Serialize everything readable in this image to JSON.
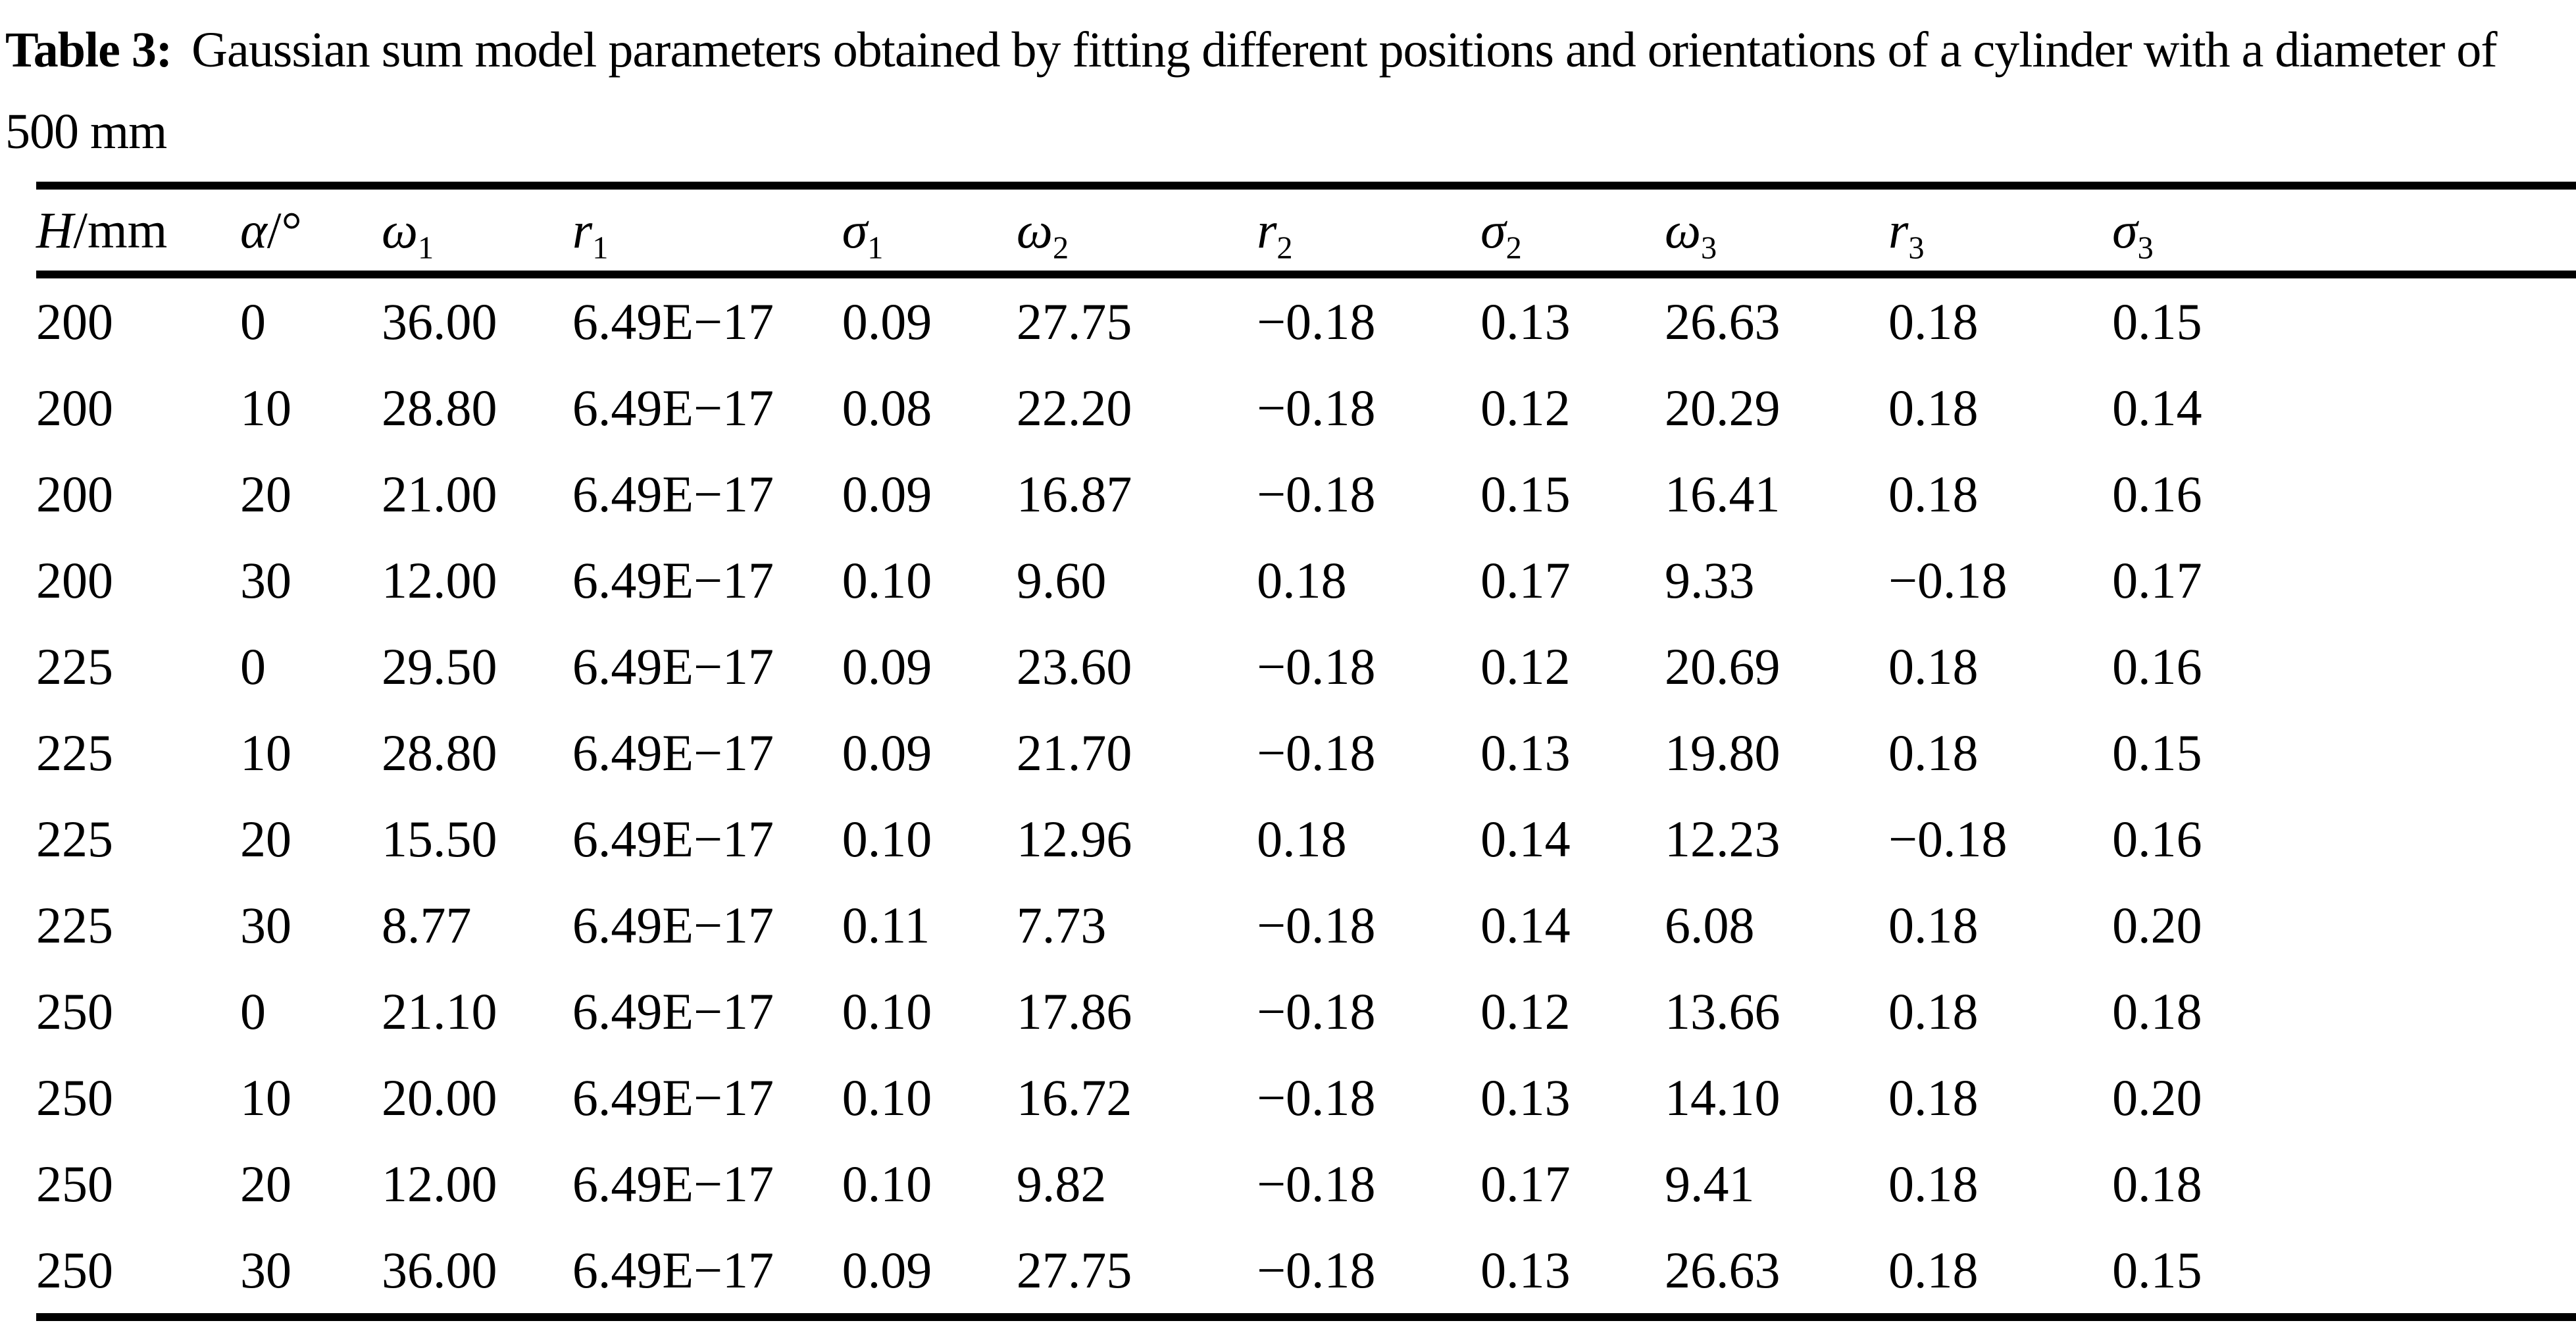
{
  "caption": {
    "label": "Table 3:",
    "text": "Gaussian sum model parameters obtained by fitting different positions and orientations of a cylinder with a diameter of 500 mm"
  },
  "table": {
    "headers": [
      {
        "id": "h-mm",
        "base": "H",
        "suffix": "/mm",
        "sub": ""
      },
      {
        "id": "alpha-deg",
        "base": "α",
        "suffix": "/°",
        "sub": ""
      },
      {
        "id": "omega-1",
        "base": "ω",
        "suffix": "",
        "sub": "1"
      },
      {
        "id": "r-1",
        "base": "r",
        "suffix": "",
        "sub": "1"
      },
      {
        "id": "sigma-1",
        "base": "σ",
        "suffix": "",
        "sub": "1"
      },
      {
        "id": "omega-2",
        "base": "ω",
        "suffix": "",
        "sub": "2"
      },
      {
        "id": "r-2",
        "base": "r",
        "suffix": "",
        "sub": "2"
      },
      {
        "id": "sigma-2",
        "base": "σ",
        "suffix": "",
        "sub": "2"
      },
      {
        "id": "omega-3",
        "base": "ω",
        "suffix": "",
        "sub": "3"
      },
      {
        "id": "r-3",
        "base": "r",
        "suffix": "",
        "sub": "3"
      },
      {
        "id": "sigma-3",
        "base": "σ",
        "suffix": "",
        "sub": "3"
      }
    ],
    "rows": [
      [
        "200",
        "0",
        "36.00",
        "6.49E−17",
        "0.09",
        "27.75",
        "−0.18",
        "0.13",
        "26.63",
        "0.18",
        "0.15"
      ],
      [
        "200",
        "10",
        "28.80",
        "6.49E−17",
        "0.08",
        "22.20",
        "−0.18",
        "0.12",
        "20.29",
        "0.18",
        "0.14"
      ],
      [
        "200",
        "20",
        "21.00",
        "6.49E−17",
        "0.09",
        "16.87",
        "−0.18",
        "0.15",
        "16.41",
        "0.18",
        "0.16"
      ],
      [
        "200",
        "30",
        "12.00",
        "6.49E−17",
        "0.10",
        "9.60",
        "0.18",
        "0.17",
        "9.33",
        "−0.18",
        "0.17"
      ],
      [
        "225",
        "0",
        "29.50",
        "6.49E−17",
        "0.09",
        "23.60",
        "−0.18",
        "0.12",
        "20.69",
        "0.18",
        "0.16"
      ],
      [
        "225",
        "10",
        "28.80",
        "6.49E−17",
        "0.09",
        "21.70",
        "−0.18",
        "0.13",
        "19.80",
        "0.18",
        "0.15"
      ],
      [
        "225",
        "20",
        "15.50",
        "6.49E−17",
        "0.10",
        "12.96",
        "0.18",
        "0.14",
        "12.23",
        "−0.18",
        "0.16"
      ],
      [
        "225",
        "30",
        "8.77",
        "6.49E−17",
        "0.11",
        "7.73",
        "−0.18",
        "0.14",
        "6.08",
        "0.18",
        "0.20"
      ],
      [
        "250",
        "0",
        "21.10",
        "6.49E−17",
        "0.10",
        "17.86",
        "−0.18",
        "0.12",
        "13.66",
        "0.18",
        "0.18"
      ],
      [
        "250",
        "10",
        "20.00",
        "6.49E−17",
        "0.10",
        "16.72",
        "−0.18",
        "0.13",
        "14.10",
        "0.18",
        "0.20"
      ],
      [
        "250",
        "20",
        "12.00",
        "6.49E−17",
        "0.10",
        "9.82",
        "−0.18",
        "0.17",
        "9.41",
        "0.18",
        "0.18"
      ],
      [
        "250",
        "30",
        "36.00",
        "6.49E−17",
        "0.09",
        "27.75",
        "−0.18",
        "0.13",
        "26.63",
        "0.18",
        "0.15"
      ]
    ]
  },
  "colors": {
    "text": "#000000",
    "background": "#ffffff",
    "rule": "#000000"
  }
}
